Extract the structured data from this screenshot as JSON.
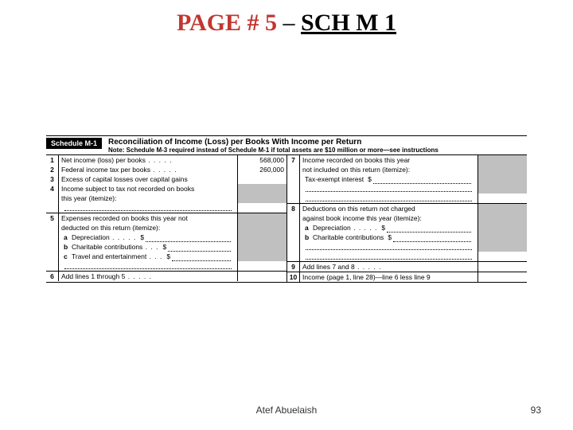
{
  "title": {
    "left": "PAGE # 5",
    "dash": " – ",
    "right": "SCH M 1"
  },
  "schedule": {
    "badge": "Schedule M-1",
    "heading": "Reconciliation of Income (Loss) per Books With Income per Return",
    "note": "Note: Schedule M-3 required instead of Schedule M-1 if total assets are $10 million or more—see instructions"
  },
  "left": {
    "l1": {
      "n": "1",
      "label": "Net income (loss) per books",
      "value": "568,000"
    },
    "l2": {
      "n": "2",
      "label": "Federal income tax per books",
      "value": "260,000"
    },
    "l3": {
      "n": "3",
      "label": "Excess of capital losses over capital gains"
    },
    "l4": {
      "n": "4",
      "label_a": "Income subject to tax not recorded on books",
      "label_b": "this year (itemize):"
    },
    "l5": {
      "n": "5",
      "label_a": "Expenses recorded on books this year not",
      "label_b": "deducted on this return (itemize):"
    },
    "a": {
      "n": "a",
      "label": "Depreciation",
      "ds": "$"
    },
    "b": {
      "n": "b",
      "label": "Charitable contributions",
      "ds": "$"
    },
    "c": {
      "n": "c",
      "label": "Travel and entertainment",
      "ds": "$"
    },
    "l6": {
      "n": "6",
      "label": "Add lines 1 through 5"
    }
  },
  "right": {
    "l7": {
      "n": "7",
      "label_a": "Income recorded on books this year",
      "label_b": "not included on this return (itemize):",
      "sub_label": "Tax-exempt interest",
      "ds": "$"
    },
    "l8": {
      "n": "8",
      "label_a": "Deductions on this return not charged",
      "label_b": "against book income this year (itemize):"
    },
    "a": {
      "n": "a",
      "label": "Depreciation",
      "ds": "$"
    },
    "b": {
      "n": "b",
      "label": "Charitable contributions",
      "ds": "$"
    },
    "l9": {
      "n": "9",
      "label": "Add lines 7 and 8"
    },
    "l10": {
      "n": "10",
      "label": "Income (page 1, line 28)—line 6 less line 9"
    }
  },
  "footer": {
    "author": "Atef Abuelaish",
    "page": "93"
  },
  "colors": {
    "red": "#c2362f",
    "black": "#000000",
    "grey": "#c0c0c0",
    "bg": "#ffffff"
  }
}
